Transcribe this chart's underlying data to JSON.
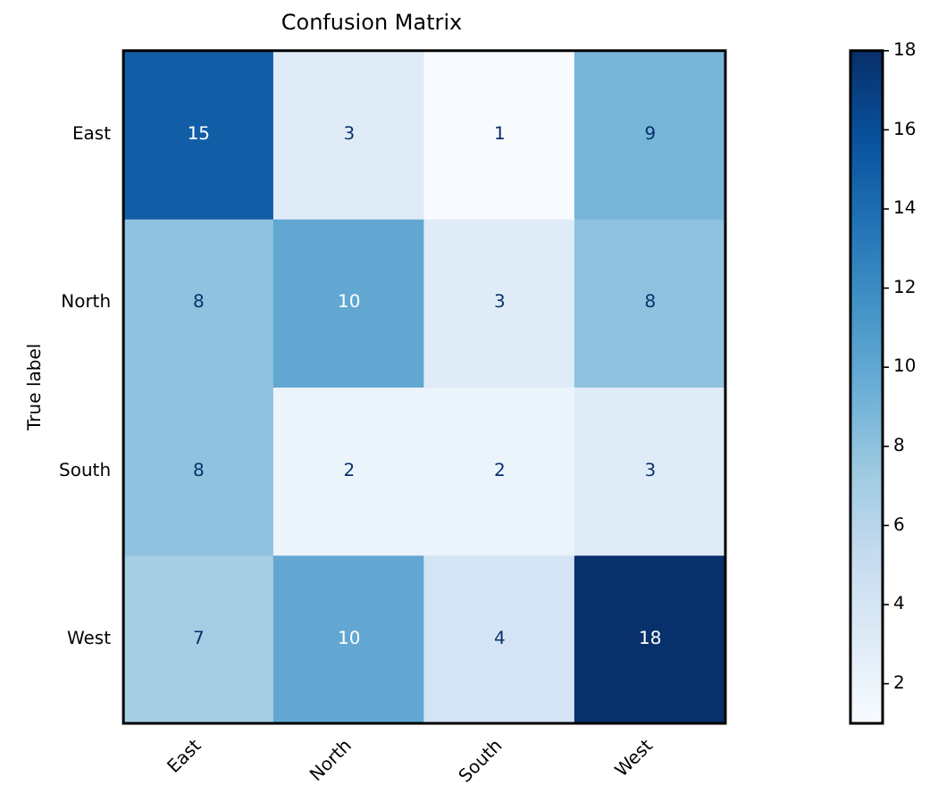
{
  "chart_data": {
    "type": "heatmap",
    "title": "Confusion Matrix",
    "ylabel": "True label",
    "categories": [
      "East",
      "North",
      "South",
      "West"
    ],
    "y_categories": [
      "East",
      "North",
      "South",
      "West"
    ],
    "cells": [
      [
        15,
        3,
        1,
        9
      ],
      [
        8,
        10,
        3,
        8
      ],
      [
        8,
        2,
        2,
        3
      ],
      [
        7,
        10,
        4,
        18
      ]
    ],
    "clim": [
      1,
      18
    ],
    "cticks": [
      2,
      4,
      6,
      8,
      10,
      12,
      14,
      16,
      18
    ],
    "data_labels": true
  }
}
